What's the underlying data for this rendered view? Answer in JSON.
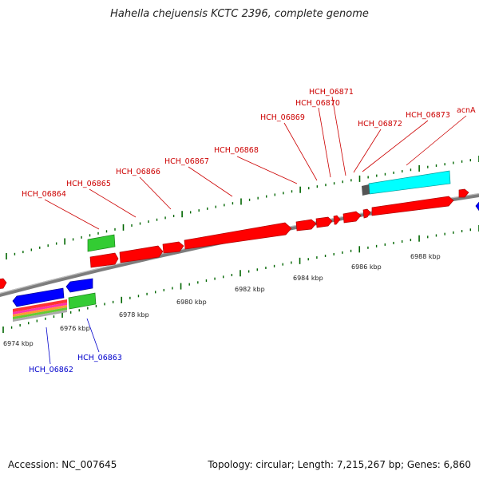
{
  "title": "Hahella chejuensis KCTC 2396, complete genome",
  "footer": {
    "accession": "Accession: NC_007645",
    "topology": "Topology: circular; Length: 7,215,267 bp; Genes: 6,860"
  },
  "colors": {
    "forward_gene": "#ff0000",
    "reverse_gene": "#0000ff",
    "rrna": "#33cc33",
    "pseudo": "#00ffff",
    "label_forward": "#cc0000",
    "label_reverse": "#0000cc",
    "backbone": "#888888",
    "tick": "#006600"
  },
  "ticks": [
    "6974 kbp",
    "6976 kbp",
    "6978 kbp",
    "6980 kbp",
    "6982 kbp",
    "6984 kbp",
    "6986 kbp",
    "6988 kbp"
  ],
  "gene_labels_top": [
    "HCH_06864",
    "HCH_06865",
    "HCH_06866",
    "HCH_06867",
    "HCH_06868",
    "HCH_06869",
    "HCH_06870",
    "HCH_06871",
    "HCH_06872",
    "HCH_06873",
    "acnA"
  ],
  "gene_labels_bottom": [
    "HCH_06862",
    "HCH_06863"
  ]
}
